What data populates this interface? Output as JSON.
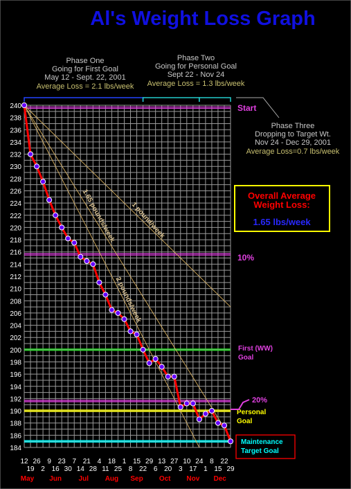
{
  "chart_data": {
    "type": "line",
    "title": "Al's Weight  Loss Graph",
    "ylim": [
      184,
      240
    ],
    "y_ticks": [
      240,
      238,
      236,
      234,
      232,
      230,
      228,
      226,
      224,
      222,
      220,
      218,
      216,
      214,
      212,
      210,
      208,
      206,
      204,
      202,
      200,
      198,
      196,
      194,
      192,
      190,
      188,
      186,
      184
    ],
    "x_ticks_row1": [
      "12",
      "26",
      "9",
      "23",
      "7",
      "21",
      "4",
      "18",
      "1",
      "15",
      "29",
      "13",
      "27",
      "10",
      "24",
      "8",
      "22"
    ],
    "x_ticks_row2": [
      "19",
      "2",
      "16",
      "30",
      "14",
      "28",
      "11",
      "25",
      "8",
      "22",
      "6",
      "20",
      "3",
      "17",
      "1",
      "15",
      "29"
    ],
    "months": [
      "May",
      "Jun",
      "Jul",
      "Aug",
      "Sep",
      "Oct",
      "Nov",
      "Dec"
    ],
    "series": [
      {
        "x": [
          "2001-05-12",
          "2001-05-19",
          "2001-05-26",
          "2001-06-02",
          "2001-06-09",
          "2001-06-16",
          "2001-06-23",
          "2001-06-30",
          "2001-07-07",
          "2001-07-14",
          "2001-07-21",
          "2001-07-28",
          "2001-08-04",
          "2001-08-11",
          "2001-08-18",
          "2001-08-25",
          "2001-09-01",
          "2001-09-08",
          "2001-09-15",
          "2001-09-22",
          "2001-09-29",
          "2001-10-06",
          "2001-10-13",
          "2001-10-20",
          "2001-10-27",
          "2001-11-03",
          "2001-11-10",
          "2001-11-17",
          "2001-11-24",
          "2001-12-01",
          "2001-12-08",
          "2001-12-15",
          "2001-12-22",
          "2001-12-29"
        ],
        "values": [
          240,
          232,
          230,
          227.5,
          224.5,
          222,
          220,
          218.2,
          217.5,
          215.2,
          214.5,
          214,
          211,
          209,
          206.5,
          206,
          205,
          203,
          202.5,
          200,
          197.8,
          198.5,
          197.2,
          195.6,
          195.6,
          190.6,
          191.2,
          191.2,
          188.6,
          189.5,
          190,
          188,
          187.6,
          185
        ]
      }
    ],
    "trend_lines": [
      {
        "label": "1 pound/week",
        "slope_per_week": -1
      },
      {
        "label": "1.65 pounds/week",
        "slope_per_week": -1.65
      },
      {
        "label": "2 pounds/week",
        "slope_per_week": -2
      }
    ],
    "reference_lines": [
      {
        "label": "Start",
        "value": 239.6,
        "color": "#e040e0"
      },
      {
        "label": "10%",
        "value": 215.6,
        "color": "#e040e0"
      },
      {
        "label": "First (WW)\nGoal",
        "value": 200,
        "color": "#22dd22",
        "label_color": "#e040e0"
      },
      {
        "label": "20%",
        "value": 191.6,
        "color": "#e040e0"
      },
      {
        "label": "Personal\nGoal",
        "value": 190,
        "color": "#ffff00",
        "label_color": "#ffff00"
      },
      {
        "label": "Maintenance\nTarget Goal",
        "value": 185,
        "color": "#00ffff",
        "label_color": "#00ffff"
      }
    ],
    "phases": [
      {
        "title": "Phase One",
        "subtitle": "Going for First Goal",
        "dates": "May 12 - Sept. 22, 2001",
        "avg": "Average Loss = 2.1 lbs/week"
      },
      {
        "title": "Phase Two",
        "subtitle": "Going for Personal Goal",
        "dates": "Sept 22 - Nov 24",
        "avg": "Average Loss = 1.3 lbs/week"
      },
      {
        "title": "Phase Three",
        "subtitle": "Dropping to Target Wt.",
        "dates": "Nov 24 - Dec 29, 2001",
        "avg": "Average Loss=0.7 lbs/week"
      }
    ],
    "overall": {
      "title": "Overall Average\nWeight Loss:",
      "value": "1.65 lbs/week"
    },
    "grid": true,
    "colors": {
      "line": "#ff0000",
      "marker_fill": "#6600ff",
      "marker_stroke": "#ffffff",
      "grid": "#9a9a9a",
      "title": "#1010e0",
      "phase_text": "#c8c8c8",
      "phase_avg": "#c8c070",
      "month": "#ff0000",
      "overall_border": "#ffff00",
      "overall_title": "#ff0000",
      "overall_value": "#2828ff",
      "maint_border": "#ff0000"
    }
  }
}
